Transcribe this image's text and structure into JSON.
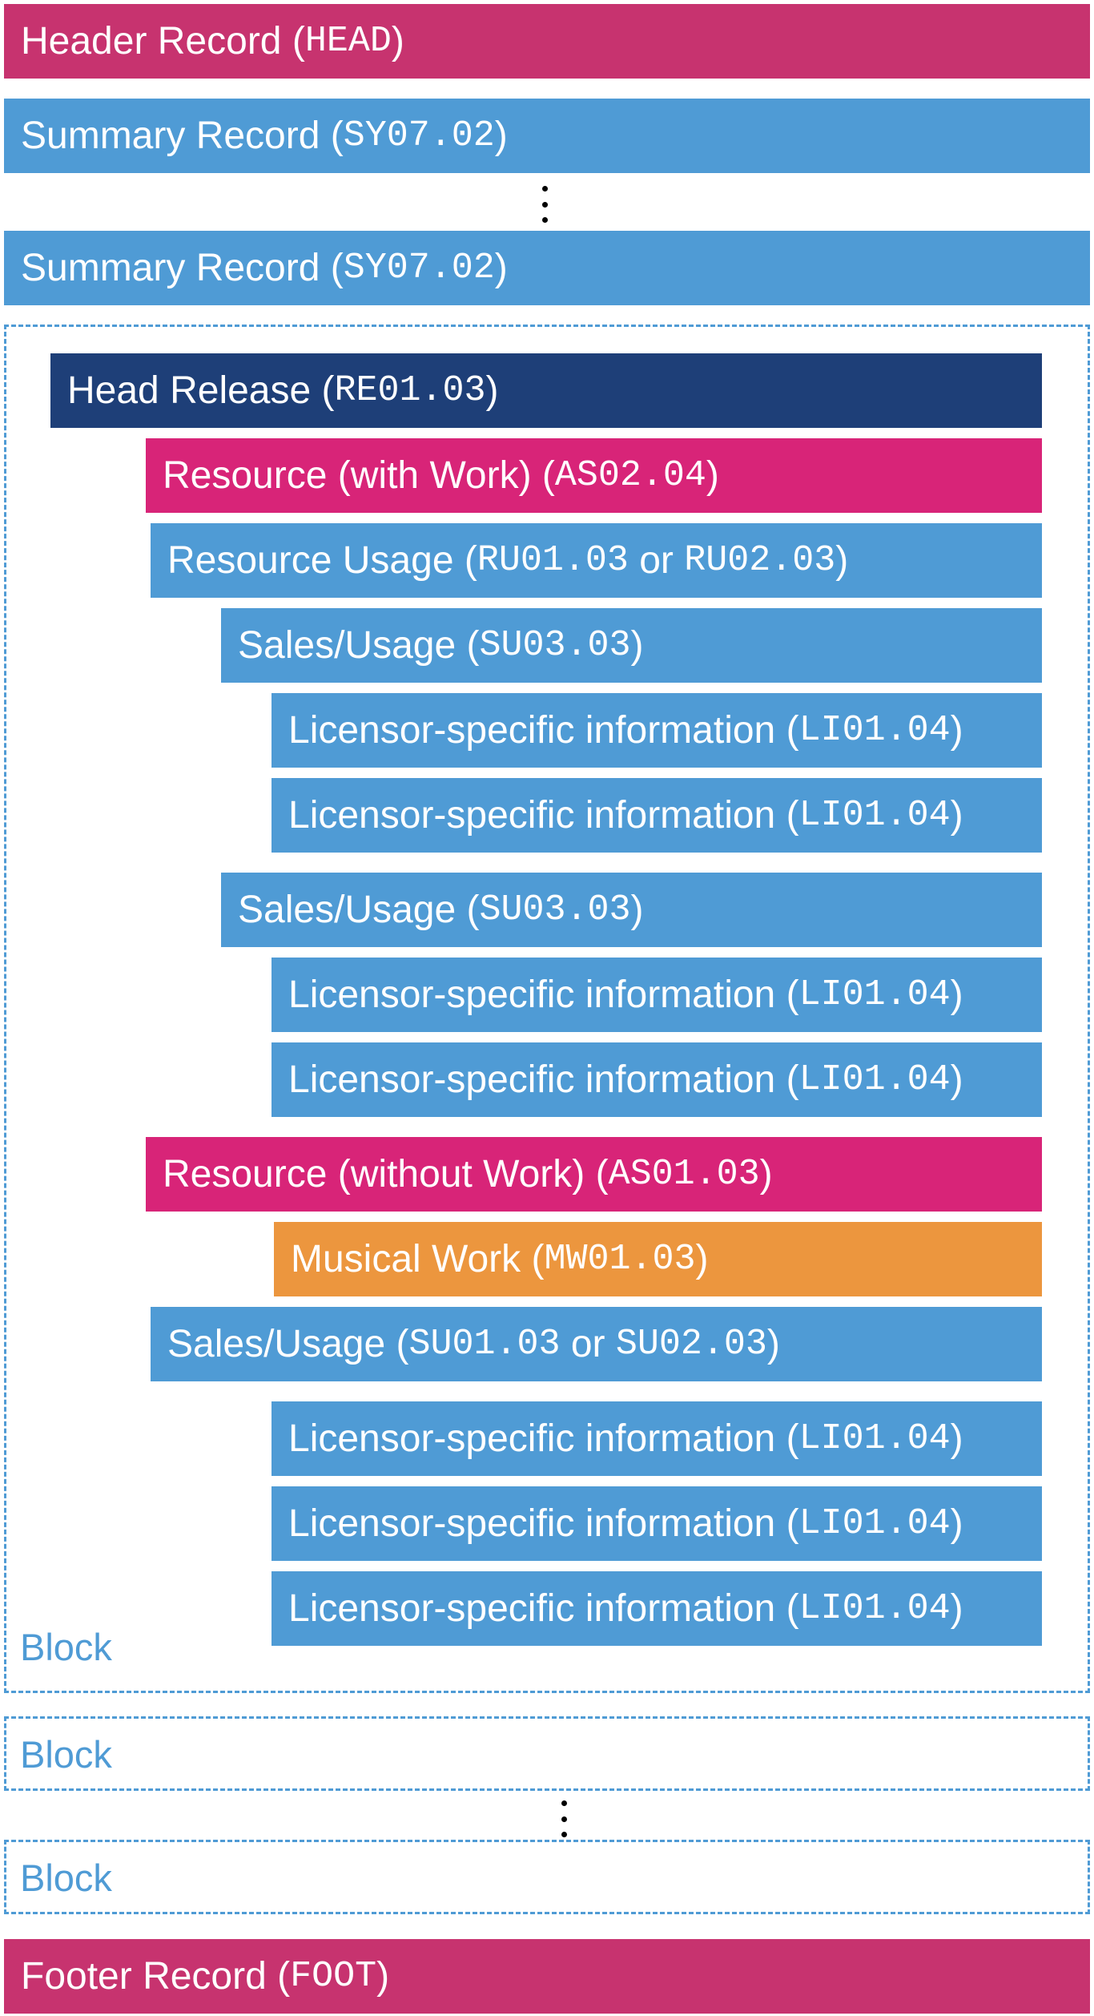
{
  "header": {
    "label": "Header Record (",
    "code": "HEAD",
    "close": ")"
  },
  "summary1": {
    "label": "Summary Record (",
    "code": "SY07.02",
    "close": ")"
  },
  "summary2": {
    "label": "Summary Record (",
    "code": "SY07.02",
    "close": ")"
  },
  "block1": {
    "label": "Block",
    "head_release": {
      "label": "Head Release (",
      "code": "RE01.03",
      "close": ")"
    },
    "resource_with_work": {
      "label": "Resource (with Work) (",
      "code": "AS02.04",
      "close": ")"
    },
    "resource_usage": {
      "label": "Resource Usage (",
      "code1": "RU01.03",
      "mid": " or ",
      "code2": "RU02.03",
      "close": ")"
    },
    "sales_usage_1": {
      "label": "Sales/Usage (",
      "code": "SU03.03",
      "close": ")"
    },
    "licensor_1a": {
      "label": "Licensor-specific information (",
      "code": "LI01.04",
      "close": ")"
    },
    "licensor_1b": {
      "label": "Licensor-specific information (",
      "code": "LI01.04",
      "close": ")"
    },
    "sales_usage_2": {
      "label": "Sales/Usage (",
      "code": "SU03.03",
      "close": ")"
    },
    "licensor_2a": {
      "label": "Licensor-specific information (",
      "code": "LI01.04",
      "close": ")"
    },
    "licensor_2b": {
      "label": "Licensor-specific information (",
      "code": "LI01.04",
      "close": ")"
    },
    "resource_without_work": {
      "label": "Resource (without Work) (",
      "code": "AS01.03",
      "close": ")"
    },
    "musical_work": {
      "label": "Musical Work (",
      "code": "MW01.03",
      "close": ")"
    },
    "sales_usage_3": {
      "label": "Sales/Usage (",
      "code1": "SU01.03",
      "mid": " or ",
      "code2": "SU02.03",
      "close": ")"
    },
    "licensor_3a": {
      "label": "Licensor-specific information (",
      "code": "LI01.04",
      "close": ")"
    },
    "licensor_3b": {
      "label": "Licensor-specific information (",
      "code": "LI01.04",
      "close": ")"
    },
    "licensor_3c": {
      "label": "Licensor-specific information (",
      "code": "LI01.04",
      "close": ")"
    }
  },
  "block2": {
    "label": "Block"
  },
  "block3": {
    "label": "Block"
  },
  "footer": {
    "label": "Footer Record (",
    "code": "FOOT",
    "close": ")"
  },
  "colors": {
    "record_blue": "#4f9bd5",
    "header_footer_magenta": "#c7336f",
    "resource_pink": "#d82478",
    "head_release_navy": "#1e3f78",
    "musical_work_orange": "#ec963e"
  }
}
